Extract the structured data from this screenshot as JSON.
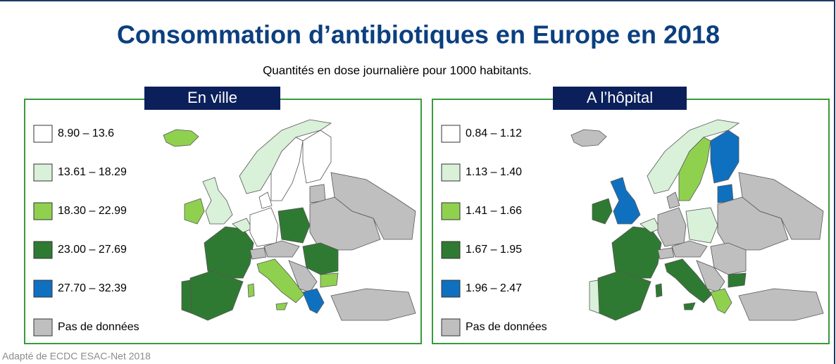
{
  "title": "Consommation d’antibiotiques en Europe en 2018",
  "subtitle": "Quantités en dose journalière pour 1000 habitants.",
  "panels": [
    {
      "title": "En ville",
      "legend": [
        {
          "label": "8.90 – 13.6",
          "color": "#ffffff"
        },
        {
          "label": "13.61 – 18.29",
          "color": "#d9f0d9"
        },
        {
          "label": "18.30 – 22.99",
          "color": "#8fd14f"
        },
        {
          "label": "23.00 – 27.69",
          "color": "#2f7a32"
        },
        {
          "label": "27.70 – 32.39",
          "color": "#1070c0"
        },
        {
          "label": "Pas de données",
          "color": "#bfbfbf"
        }
      ]
    },
    {
      "title": "A l’hôpital",
      "legend": [
        {
          "label": "0.84 – 1.12",
          "color": "#ffffff"
        },
        {
          "label": "1.13 – 1.40",
          "color": "#d9f0d9"
        },
        {
          "label": "1.41 – 1.66",
          "color": "#8fd14f"
        },
        {
          "label": "1.67 – 1.95",
          "color": "#2f7a32"
        },
        {
          "label": "1.96 – 2.47",
          "color": "#1070c0"
        },
        {
          "label": "Pas de données",
          "color": "#bfbfbf"
        }
      ]
    }
  ],
  "source": "Adapté de ECDC ESAC-Net 2018"
}
